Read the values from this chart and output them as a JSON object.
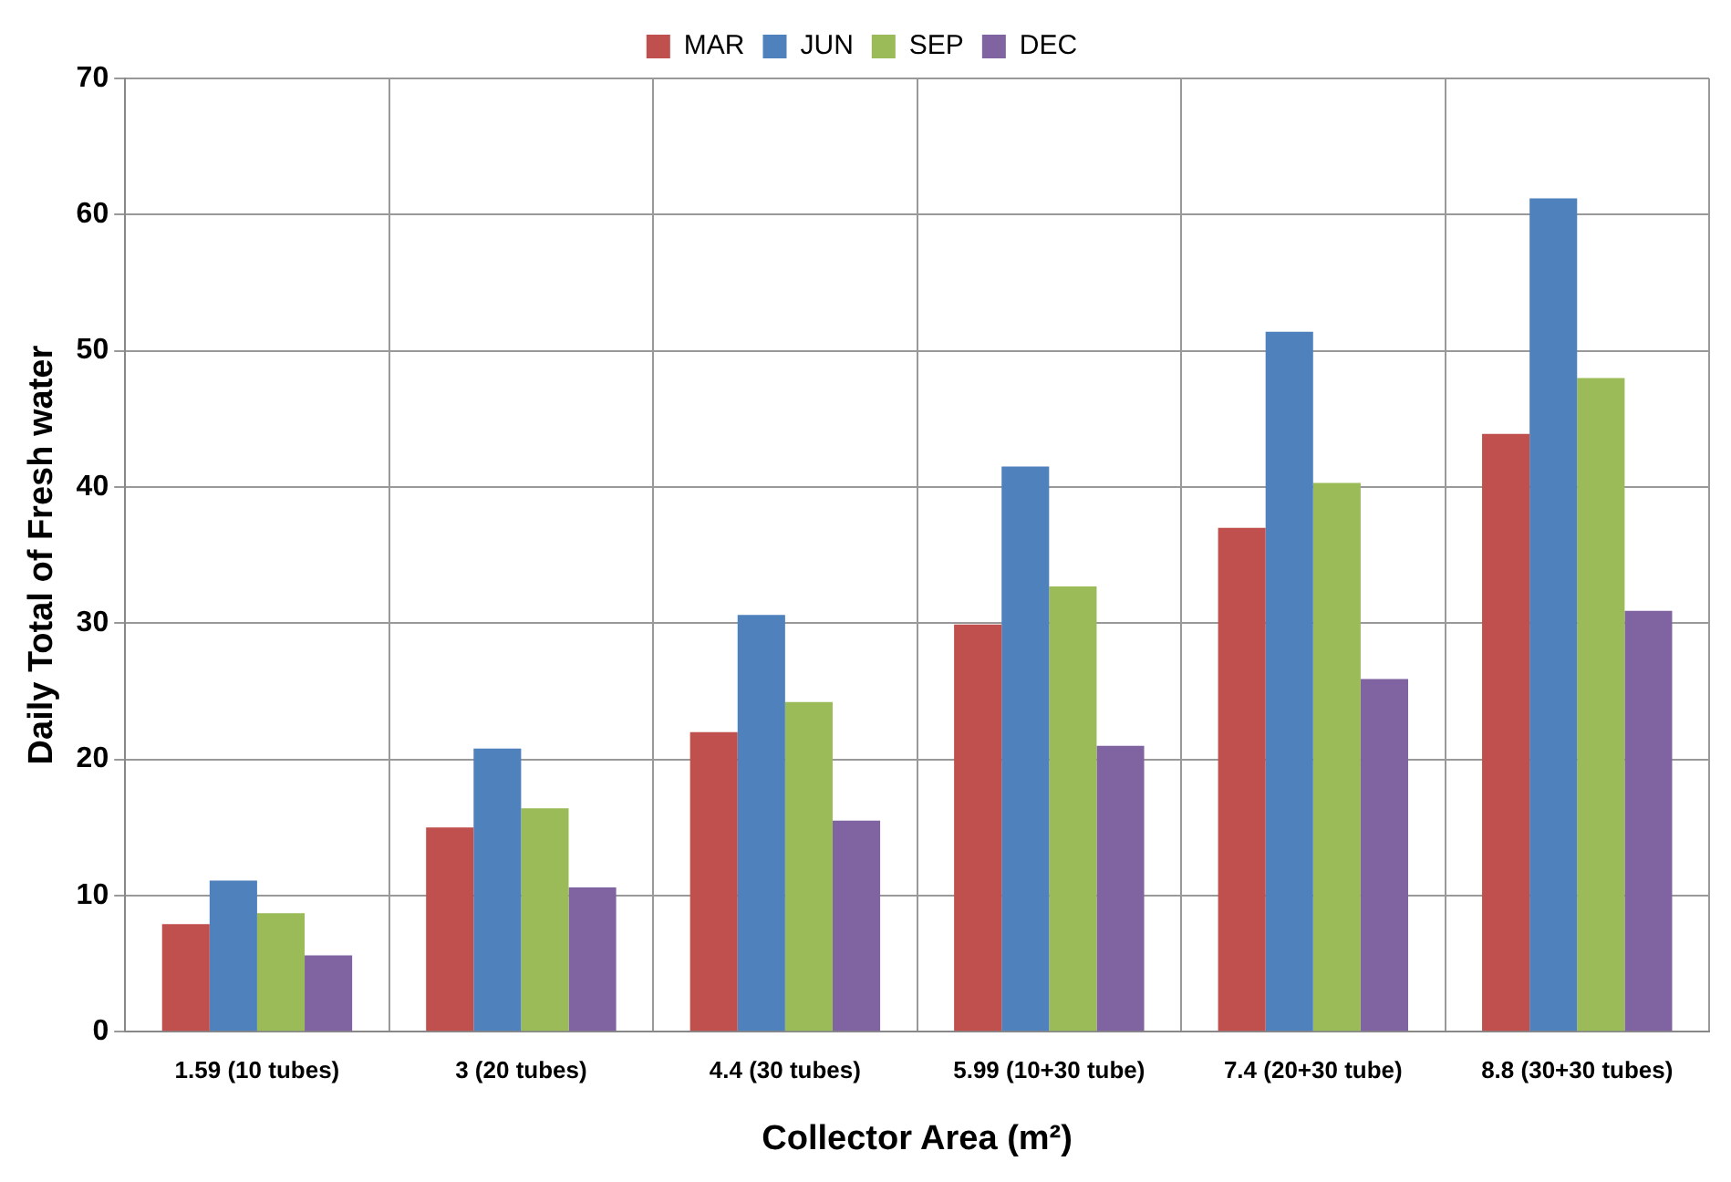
{
  "chart_data": {
    "type": "bar",
    "xlabel": "Collector Area (m²)",
    "ylabel": "Daily Total of Fresh water",
    "categories": [
      "1.59 (10 tubes)",
      "3 (20 tubes)",
      "4.4 (30 tubes)",
      "5.99 (10+30 tube)",
      "7.4 (20+30 tube)",
      "8.8 (30+30 tubes)"
    ],
    "series": [
      {
        "name": "MAR",
        "color": "#c0504d",
        "values": [
          7.9,
          15,
          22,
          29.9,
          37,
          43.9
        ]
      },
      {
        "name": "JUN",
        "color": "#4f81bd",
        "values": [
          11.1,
          20.8,
          30.6,
          41.5,
          51.4,
          61.2
        ]
      },
      {
        "name": "SEP",
        "color": "#9bbb59",
        "values": [
          8.7,
          16.4,
          24.2,
          32.7,
          40.3,
          48
        ]
      },
      {
        "name": "DEC",
        "color": "#8064a2",
        "values": [
          5.6,
          10.6,
          15.5,
          21,
          25.9,
          30.9
        ]
      }
    ],
    "ylim": [
      0,
      70
    ],
    "yticks": [
      0,
      10,
      20,
      30,
      40,
      50,
      60,
      70
    ],
    "grid": true,
    "legend": "top"
  }
}
